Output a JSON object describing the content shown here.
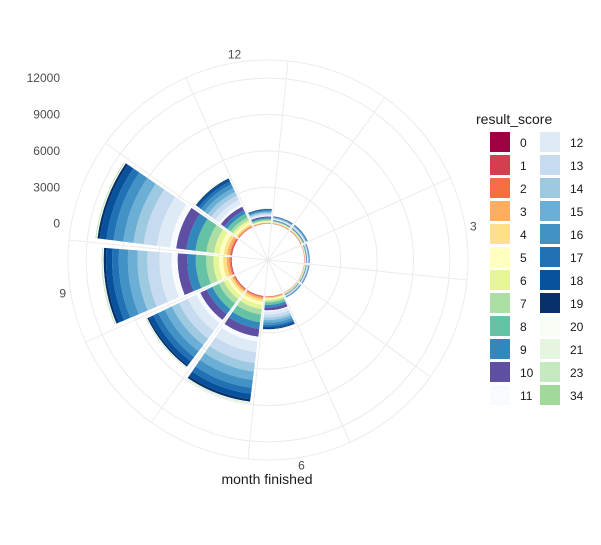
{
  "chart_data": {
    "type": "bar",
    "coord": "polar",
    "stacked": true,
    "theta_label": "month finished",
    "theta_ticks": [
      "12",
      "3",
      "6",
      "9"
    ],
    "r_ticks": [
      "0",
      "3000",
      "6000",
      "9000",
      "12000"
    ],
    "r_lim": [
      -3000,
      13500
    ],
    "months": [
      1,
      2,
      3,
      4,
      5,
      6,
      7,
      8,
      9,
      10,
      11,
      12
    ],
    "legend_title": "result_score",
    "legend_position": "right",
    "score_levels": [
      "0",
      "1",
      "2",
      "3",
      "4",
      "5",
      "6",
      "7",
      "8",
      "9",
      "10",
      "11",
      "12",
      "13",
      "14",
      "15",
      "16",
      "17",
      "18",
      "19",
      "20",
      "21",
      "23",
      "34"
    ],
    "colors": [
      "#9e0142",
      "#d53e4f",
      "#f46d43",
      "#fdae61",
      "#fee08b",
      "#ffffbf",
      "#e6f598",
      "#abdda4",
      "#66c2a5",
      "#3288bd",
      "#5e4fa2",
      "#f7fbff",
      "#deebf7",
      "#c6dbef",
      "#9ecae1",
      "#6baed6",
      "#4292c6",
      "#2171b5",
      "#08519c",
      "#08306b",
      "#f7fcf5",
      "#e5f5e0",
      "#c7e9c0",
      "#a1d99b"
    ],
    "series": [
      {
        "name": "0",
        "values": [
          10,
          10,
          5,
          5,
          5,
          5,
          10,
          10,
          20,
          20,
          5,
          5
        ]
      },
      {
        "name": "1",
        "values": [
          20,
          20,
          10,
          10,
          10,
          20,
          50,
          50,
          60,
          60,
          30,
          20
        ]
      },
      {
        "name": "2",
        "values": [
          20,
          20,
          10,
          10,
          10,
          30,
          70,
          70,
          100,
          100,
          40,
          20
        ]
      },
      {
        "name": "3",
        "values": [
          30,
          30,
          20,
          20,
          20,
          60,
          150,
          150,
          230,
          230,
          100,
          40
        ]
      },
      {
        "name": "4",
        "values": [
          30,
          30,
          20,
          20,
          20,
          60,
          200,
          180,
          300,
          280,
          120,
          40
        ]
      },
      {
        "name": "5",
        "values": [
          30,
          30,
          20,
          20,
          20,
          80,
          250,
          250,
          350,
          350,
          150,
          50
        ]
      },
      {
        "name": "6",
        "values": [
          30,
          30,
          20,
          20,
          20,
          100,
          350,
          350,
          450,
          450,
          200,
          50
        ]
      },
      {
        "name": "7",
        "values": [
          40,
          40,
          30,
          30,
          30,
          150,
          450,
          450,
          600,
          650,
          250,
          80
        ]
      },
      {
        "name": "8",
        "values": [
          40,
          40,
          30,
          30,
          30,
          200,
          650,
          600,
          850,
          900,
          350,
          100
        ]
      },
      {
        "name": "9",
        "values": [
          40,
          40,
          30,
          30,
          30,
          200,
          550,
          500,
          700,
          750,
          300,
          80
        ]
      },
      {
        "name": "10",
        "values": [
          40,
          40,
          30,
          30,
          30,
          250,
          650,
          600,
          800,
          850,
          350,
          100
        ]
      },
      {
        "name": "11",
        "values": [
          30,
          30,
          20,
          20,
          20,
          100,
          400,
          350,
          500,
          500,
          200,
          50
        ]
      },
      {
        "name": "12",
        "values": [
          40,
          40,
          30,
          30,
          30,
          250,
          900,
          800,
          1000,
          1100,
          400,
          100
        ]
      },
      {
        "name": "13",
        "values": [
          40,
          40,
          30,
          30,
          30,
          250,
          900,
          800,
          1000,
          1100,
          400,
          100
        ]
      },
      {
        "name": "14",
        "values": [
          40,
          40,
          30,
          30,
          30,
          200,
          700,
          650,
          800,
          850,
          350,
          80
        ]
      },
      {
        "name": "15",
        "values": [
          40,
          40,
          30,
          30,
          30,
          200,
          700,
          650,
          800,
          850,
          350,
          80
        ]
      },
      {
        "name": "16",
        "values": [
          40,
          40,
          30,
          30,
          30,
          200,
          650,
          600,
          750,
          800,
          350,
          80
        ]
      },
      {
        "name": "17",
        "values": [
          30,
          30,
          20,
          20,
          20,
          150,
          500,
          450,
          550,
          600,
          250,
          60
        ]
      },
      {
        "name": "18",
        "values": [
          30,
          30,
          20,
          20,
          20,
          150,
          450,
          400,
          500,
          550,
          200,
          60
        ]
      },
      {
        "name": "19",
        "values": [
          20,
          20,
          10,
          10,
          10,
          60,
          200,
          150,
          200,
          200,
          80,
          20
        ]
      },
      {
        "name": "20",
        "values": [
          10,
          10,
          5,
          5,
          5,
          20,
          40,
          40,
          50,
          50,
          20,
          10
        ]
      },
      {
        "name": "21",
        "values": [
          10,
          10,
          5,
          5,
          5,
          20,
          40,
          40,
          50,
          50,
          20,
          10
        ]
      },
      {
        "name": "23",
        "values": [
          5,
          5,
          5,
          5,
          5,
          10,
          20,
          20,
          30,
          30,
          10,
          5
        ]
      },
      {
        "name": "34",
        "values": [
          5,
          5,
          5,
          5,
          5,
          10,
          20,
          20,
          30,
          30,
          10,
          5
        ]
      }
    ]
  }
}
